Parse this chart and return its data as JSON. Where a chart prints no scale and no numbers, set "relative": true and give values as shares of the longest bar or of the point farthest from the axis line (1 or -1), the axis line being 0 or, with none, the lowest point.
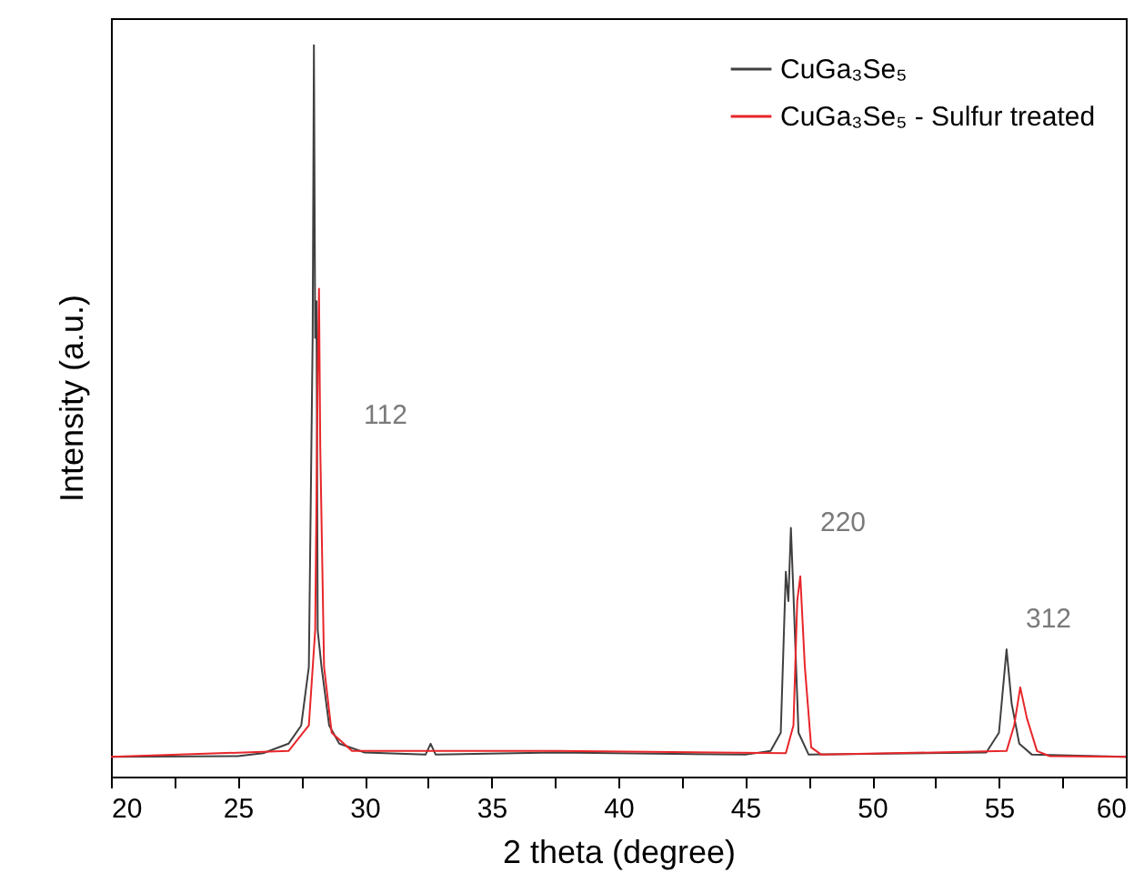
{
  "chart_data": {
    "type": "line",
    "xlabel": "2 theta  (degree)",
    "ylabel": "Intensity (a.u.)",
    "relative": true,
    "xlim": [
      20,
      60
    ],
    "xticks": [
      20,
      {
        "value": 22.5,
        "label": null
      },
      25,
      {
        "value": 27.5,
        "label": null
      },
      30,
      {
        "value": 32.5,
        "label": null
      },
      35,
      {
        "value": 37.5,
        "label": null
      },
      40,
      {
        "value": 42.5,
        "label": null
      },
      45,
      {
        "value": 47.5,
        "label": null
      },
      50,
      {
        "value": 52.5,
        "label": null
      },
      55,
      {
        "value": 57.5,
        "label": null
      },
      60
    ],
    "legend": "top right",
    "grid": false,
    "annotations": [
      "112",
      "220",
      "312"
    ],
    "series": [
      {
        "name": "CuGa₃Se₅",
        "color": "#404040",
        "x": [
          20,
          25,
          26,
          27,
          27.5,
          27.8,
          27.95,
          28.0,
          28.05,
          28.1,
          28.15,
          28.3,
          28.6,
          29,
          30,
          32.4,
          32.6,
          32.8,
          37.5,
          45,
          46,
          46.4,
          46.6,
          46.7,
          46.8,
          46.9,
          47.1,
          47.5,
          54.5,
          55.0,
          55.3,
          55.5,
          55.8,
          56.3,
          60
        ],
        "values": [
          0.027,
          0.028,
          0.032,
          0.045,
          0.07,
          0.15,
          0.6,
          1.0,
          0.6,
          0.65,
          0.2,
          0.15,
          0.07,
          0.045,
          0.033,
          0.03,
          0.045,
          0.03,
          0.033,
          0.03,
          0.035,
          0.06,
          0.28,
          0.24,
          0.34,
          0.25,
          0.06,
          0.03,
          0.033,
          0.06,
          0.174,
          0.1,
          0.045,
          0.03,
          0.027
        ]
      },
      {
        "name": "CuGa₃Se₅ - Sulfur treated",
        "color": "#e8262a",
        "x": [
          20,
          27,
          27.8,
          28.05,
          28.15,
          28.2,
          28.25,
          28.4,
          28.7,
          29.5,
          37.6,
          46.6,
          46.9,
          47.05,
          47.17,
          47.35,
          47.6,
          48,
          55.3,
          55.6,
          55.84,
          56.1,
          56.5,
          57,
          60
        ],
        "values": [
          0.027,
          0.035,
          0.07,
          0.2,
          0.55,
          0.667,
          0.45,
          0.15,
          0.06,
          0.035,
          0.035,
          0.032,
          0.07,
          0.24,
          0.274,
          0.15,
          0.04,
          0.03,
          0.035,
          0.07,
          0.122,
          0.08,
          0.035,
          0.028,
          0.027
        ]
      }
    ]
  }
}
